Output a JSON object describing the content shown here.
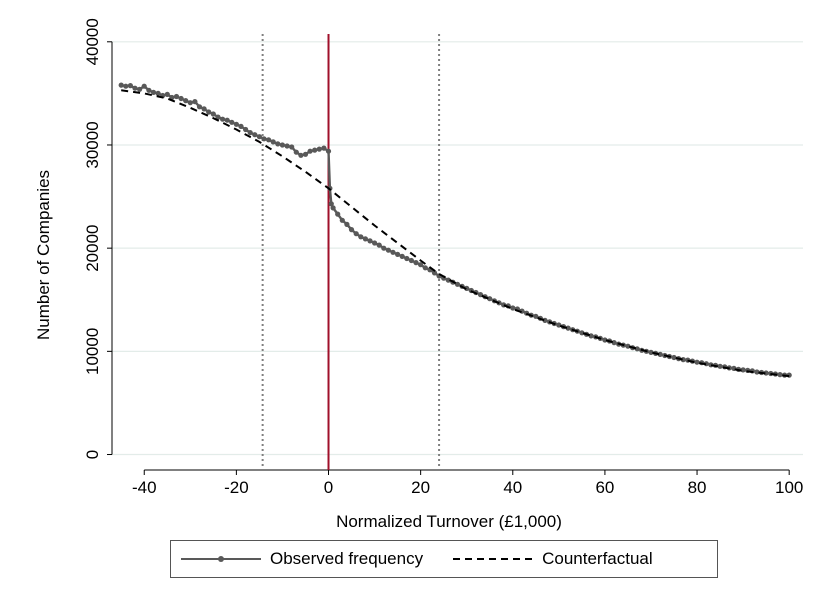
{
  "chart_data": {
    "type": "line",
    "title": "",
    "xlabel": "Normalized Turnover (£1,000)",
    "ylabel": "Number of Companies",
    "xlim": [
      -47,
      103
    ],
    "ylim": [
      -1500,
      42500
    ],
    "x_ticks": [
      -40,
      -20,
      0,
      20,
      40,
      60,
      80,
      100
    ],
    "x_tick_labels": [
      "-40",
      "-20",
      "0",
      "20",
      "40",
      "60",
      "80",
      "100"
    ],
    "y_ticks": [
      0,
      10000,
      20000,
      30000,
      40000
    ],
    "y_tick_labels": [
      "0",
      "10000",
      "20000",
      "30000",
      "40000"
    ],
    "grid": "horizontal",
    "legend_position": "bottom",
    "colors": {
      "observed": "#595959",
      "counterfactual": "#000000",
      "threshold_line": "#a0102a",
      "bound_lines": "#7f7f7f",
      "grid": "#e3ece9"
    },
    "vertical_lines": [
      {
        "x": -14.3,
        "style": "dotted",
        "color": "#7f7f7f"
      },
      {
        "x": 0,
        "style": "solid",
        "color": "#a0102a"
      },
      {
        "x": 24,
        "style": "dotted",
        "color": "#7f7f7f"
      }
    ],
    "series": [
      {
        "name": "Observed frequency",
        "style": "solid-with-markers",
        "points": [
          [
            -45,
            35800
          ],
          [
            -44,
            35700
          ],
          [
            -43,
            35750
          ],
          [
            -42,
            35500
          ],
          [
            -41,
            35400
          ],
          [
            -40,
            35700
          ],
          [
            -39,
            35300
          ],
          [
            -38,
            35100
          ],
          [
            -37,
            35000
          ],
          [
            -36,
            34800
          ],
          [
            -35,
            34900
          ],
          [
            -34,
            34600
          ],
          [
            -33,
            34700
          ],
          [
            -32,
            34500
          ],
          [
            -31,
            34300
          ],
          [
            -30,
            34100
          ],
          [
            -29,
            34200
          ],
          [
            -28,
            33700
          ],
          [
            -27,
            33500
          ],
          [
            -26,
            33200
          ],
          [
            -25,
            33000
          ],
          [
            -24,
            32700
          ],
          [
            -23,
            32500
          ],
          [
            -22,
            32400
          ],
          [
            -21,
            32200
          ],
          [
            -20,
            32000
          ],
          [
            -19,
            31800
          ],
          [
            -18,
            31500
          ],
          [
            -17,
            31200
          ],
          [
            -16,
            31000
          ],
          [
            -15,
            30800
          ],
          [
            -14,
            30600
          ],
          [
            -13,
            30500
          ],
          [
            -12,
            30300
          ],
          [
            -11,
            30100
          ],
          [
            -10,
            30000
          ],
          [
            -9,
            29900
          ],
          [
            -8,
            29800
          ],
          [
            -7,
            29300
          ],
          [
            -6,
            29000
          ],
          [
            -5,
            29100
          ],
          [
            -4,
            29400
          ],
          [
            -3,
            29500
          ],
          [
            -2,
            29600
          ],
          [
            -1,
            29700
          ],
          [
            0,
            29400
          ],
          [
            0.3,
            25800
          ],
          [
            0.6,
            24300
          ],
          [
            1,
            23900
          ],
          [
            2,
            23300
          ],
          [
            3,
            22700
          ],
          [
            4,
            22300
          ],
          [
            5,
            21800
          ],
          [
            6,
            21400
          ],
          [
            7,
            21100
          ],
          [
            8,
            20900
          ],
          [
            9,
            20700
          ],
          [
            10,
            20500
          ],
          [
            11,
            20300
          ],
          [
            12,
            20000
          ],
          [
            13,
            19800
          ],
          [
            14,
            19600
          ],
          [
            15,
            19400
          ],
          [
            16,
            19200
          ],
          [
            17,
            19000
          ],
          [
            18,
            18800
          ],
          [
            19,
            18600
          ],
          [
            20,
            18400
          ],
          [
            21,
            18100
          ],
          [
            22,
            17900
          ],
          [
            23,
            17600
          ],
          [
            24,
            17300
          ],
          [
            25,
            17100
          ],
          [
            26,
            16900
          ],
          [
            27,
            16700
          ],
          [
            28,
            16500
          ],
          [
            29,
            16300
          ],
          [
            30,
            16100
          ],
          [
            31,
            15900
          ],
          [
            32,
            15700
          ],
          [
            33,
            15500
          ],
          [
            34,
            15300
          ],
          [
            35,
            15100
          ],
          [
            36,
            14900
          ],
          [
            37,
            14700
          ],
          [
            38,
            14500
          ],
          [
            39,
            14400
          ],
          [
            40,
            14200
          ],
          [
            41,
            14100
          ],
          [
            42,
            13900
          ],
          [
            43,
            13700
          ],
          [
            44,
            13500
          ],
          [
            45,
            13400
          ],
          [
            46,
            13200
          ],
          [
            47,
            13000
          ],
          [
            48,
            12850
          ],
          [
            49,
            12700
          ],
          [
            50,
            12550
          ],
          [
            51,
            12400
          ],
          [
            52,
            12250
          ],
          [
            53,
            12100
          ],
          [
            54,
            11950
          ],
          [
            55,
            11800
          ],
          [
            56,
            11650
          ],
          [
            57,
            11500
          ],
          [
            58,
            11400
          ],
          [
            59,
            11250
          ],
          [
            60,
            11100
          ],
          [
            61,
            11000
          ],
          [
            62,
            10850
          ],
          [
            63,
            10700
          ],
          [
            64,
            10600
          ],
          [
            65,
            10500
          ],
          [
            66,
            10350
          ],
          [
            67,
            10250
          ],
          [
            68,
            10100
          ],
          [
            69,
            10000
          ],
          [
            70,
            9900
          ],
          [
            71,
            9800
          ],
          [
            72,
            9700
          ],
          [
            73,
            9600
          ],
          [
            74,
            9500
          ],
          [
            75,
            9400
          ],
          [
            76,
            9300
          ],
          [
            77,
            9200
          ],
          [
            78,
            9150
          ],
          [
            79,
            9050
          ],
          [
            80,
            8950
          ],
          [
            81,
            8900
          ],
          [
            82,
            8800
          ],
          [
            83,
            8700
          ],
          [
            84,
            8650
          ],
          [
            85,
            8550
          ],
          [
            86,
            8500
          ],
          [
            87,
            8400
          ],
          [
            88,
            8350
          ],
          [
            89,
            8250
          ],
          [
            90,
            8200
          ],
          [
            91,
            8150
          ],
          [
            92,
            8100
          ],
          [
            93,
            8000
          ],
          [
            94,
            7950
          ],
          [
            95,
            7900
          ],
          [
            96,
            7850
          ],
          [
            97,
            7800
          ],
          [
            98,
            7750
          ],
          [
            99,
            7700
          ],
          [
            100,
            7700
          ]
        ]
      },
      {
        "name": "Counterfactual",
        "style": "dashed",
        "points": [
          [
            -45,
            35300
          ],
          [
            -40,
            35000
          ],
          [
            -35,
            34500
          ],
          [
            -30,
            33600
          ],
          [
            -25,
            32600
          ],
          [
            -20,
            31500
          ],
          [
            -15,
            30300
          ],
          [
            -10,
            28900
          ],
          [
            -5,
            27400
          ],
          [
            0,
            25800
          ],
          [
            5,
            24000
          ],
          [
            10,
            22200
          ],
          [
            15,
            20500
          ],
          [
            20,
            18800
          ],
          [
            24,
            17500
          ],
          [
            30,
            16000
          ],
          [
            40,
            14100
          ],
          [
            50,
            12500
          ],
          [
            60,
            11100
          ],
          [
            70,
            9900
          ],
          [
            80,
            8900
          ],
          [
            90,
            8100
          ],
          [
            100,
            7600
          ]
        ]
      }
    ]
  }
}
